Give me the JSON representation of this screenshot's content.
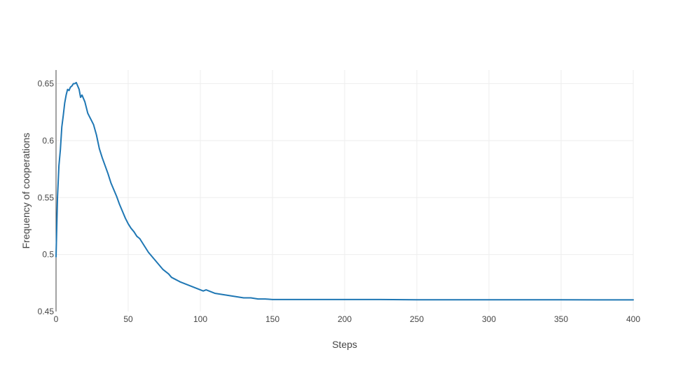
{
  "colors": {
    "line": "#1f77b4",
    "grid": "#eeeeee",
    "axis": "#444444",
    "text": "#444444"
  },
  "chart_data": {
    "type": "line",
    "title": "",
    "xlabel": "Steps",
    "ylabel": "Frequency of cooperations",
    "xlim": [
      0,
      400
    ],
    "ylim": [
      0.45,
      0.662
    ],
    "xticks": [
      0,
      50,
      100,
      150,
      200,
      250,
      300,
      350,
      400
    ],
    "yticks": [
      0.45,
      0.5,
      0.55,
      0.6,
      0.65
    ],
    "xtick_labels": [
      "0",
      "50",
      "100",
      "150",
      "200",
      "250",
      "300",
      "350",
      "400"
    ],
    "ytick_labels": [
      "0.45",
      "0.5",
      "0.55",
      "0.6",
      "0.65"
    ],
    "grid": true,
    "legend": "none",
    "series": [
      {
        "x": [
          0,
          1,
          2,
          3,
          4,
          5,
          6,
          7,
          8,
          9,
          10,
          11,
          12,
          13,
          14,
          15,
          16,
          17,
          18,
          19,
          20,
          22,
          24,
          26,
          28,
          30,
          32,
          34,
          36,
          38,
          40,
          42,
          44,
          46,
          48,
          50,
          52,
          54,
          56,
          58,
          60,
          62,
          64,
          66,
          68,
          70,
          72,
          74,
          76,
          78,
          80,
          83,
          86,
          90,
          94,
          98,
          102,
          104,
          106,
          110,
          115,
          120,
          125,
          130,
          135,
          140,
          145,
          150,
          175,
          200,
          225,
          250,
          300,
          350,
          375,
          400
        ],
        "y": [
          0.498,
          0.55,
          0.578,
          0.592,
          0.612,
          0.622,
          0.633,
          0.64,
          0.645,
          0.644,
          0.647,
          0.648,
          0.65,
          0.65,
          0.651,
          0.648,
          0.645,
          0.638,
          0.64,
          0.637,
          0.634,
          0.624,
          0.619,
          0.614,
          0.605,
          0.593,
          0.585,
          0.578,
          0.571,
          0.563,
          0.557,
          0.551,
          0.544,
          0.538,
          0.532,
          0.527,
          0.523,
          0.52,
          0.516,
          0.514,
          0.51,
          0.506,
          0.502,
          0.499,
          0.496,
          0.493,
          0.49,
          0.487,
          0.485,
          0.483,
          0.48,
          0.478,
          0.476,
          0.474,
          0.472,
          0.47,
          0.468,
          0.469,
          0.468,
          0.466,
          0.465,
          0.464,
          0.463,
          0.462,
          0.462,
          0.461,
          0.461,
          0.4605,
          0.4605,
          0.4605,
          0.4605,
          0.4603,
          0.4603,
          0.4603,
          0.4602,
          0.4602
        ]
      }
    ]
  }
}
